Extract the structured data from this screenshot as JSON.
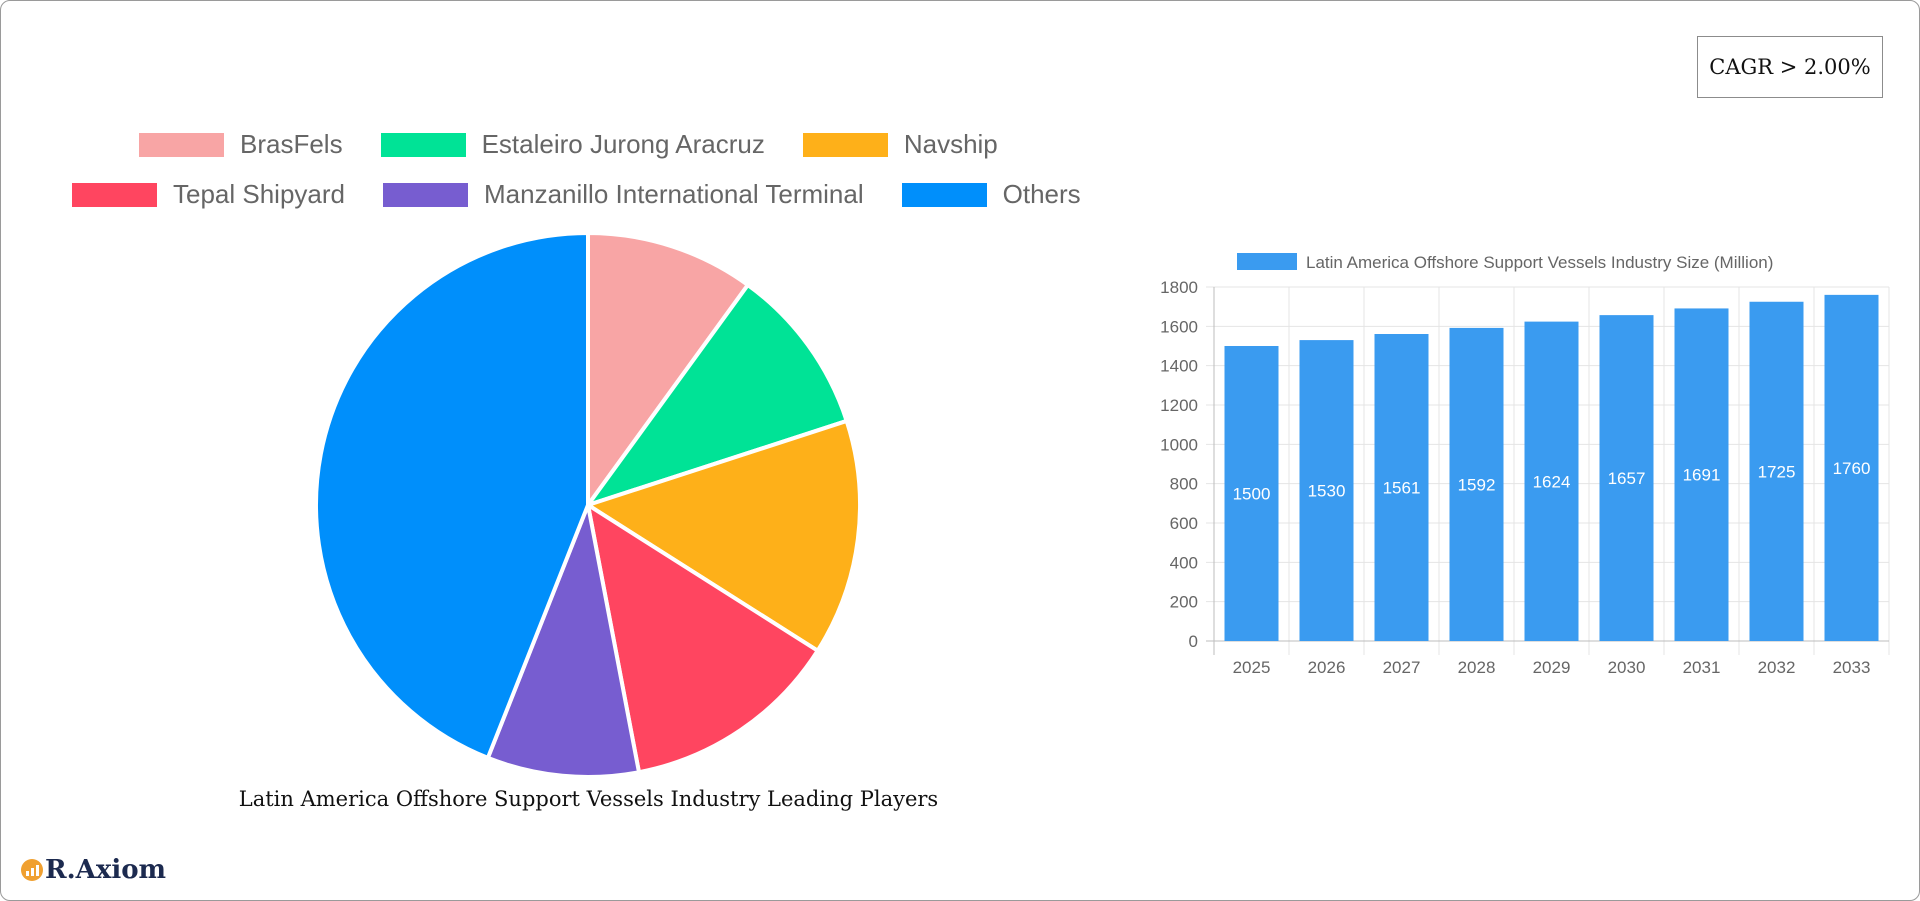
{
  "cagr_label": "CAGR > 2.00%",
  "brand": {
    "name": "R.Axiom",
    "icon": "bar-chart-logo-icon"
  },
  "chart_data": [
    {
      "type": "pie",
      "title": "Latin America Offshore Support Vessels Industry Leading Players",
      "legend_position": "top",
      "slices": [
        {
          "label": "BrasFels",
          "value": 10,
          "color": "#f8a5a5"
        },
        {
          "label": "Estaleiro Jurong Aracruz",
          "value": 10,
          "color": "#00e396"
        },
        {
          "label": "Navship",
          "value": 14,
          "color": "#feb019"
        },
        {
          "label": "Tepal Shipyard",
          "value": 13,
          "color": "#ff4560"
        },
        {
          "label": "Manzanillo International Terminal",
          "value": 9,
          "color": "#775dd0"
        },
        {
          "label": "Others",
          "value": 44,
          "color": "#008ffb"
        }
      ]
    },
    {
      "type": "bar",
      "legend_position": "top",
      "categories": [
        "2025",
        "2026",
        "2027",
        "2028",
        "2029",
        "2030",
        "2031",
        "2032",
        "2033"
      ],
      "series": [
        {
          "name": "Latin America Offshore Support Vessels Industry Size (Million)",
          "values": [
            1500,
            1530,
            1561,
            1592,
            1624,
            1657,
            1691,
            1725,
            1760
          ],
          "color": "#3a9bf0"
        }
      ],
      "ylim": [
        0,
        1800
      ],
      "yticks": [
        0,
        200,
        400,
        600,
        800,
        1000,
        1200,
        1400,
        1600,
        1800
      ],
      "grid": true,
      "data_labels": true
    }
  ]
}
